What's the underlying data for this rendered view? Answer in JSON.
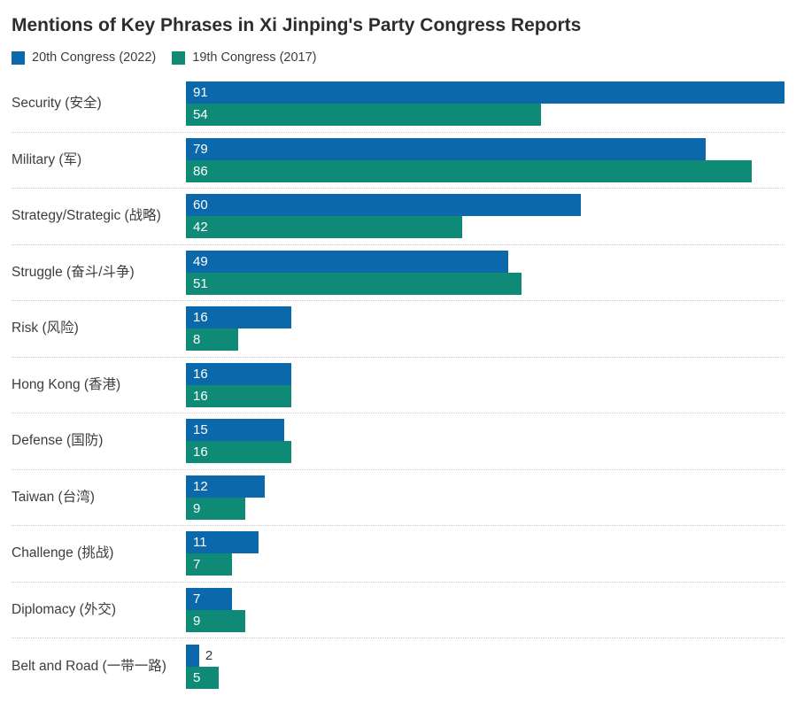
{
  "title": "Mentions of Key Phrases in Xi Jinping's Party Congress Reports",
  "legend": [
    {
      "label": "20th Congress (2022)",
      "color": "#0b69ab"
    },
    {
      "label": "19th Congress (2017)",
      "color": "#0f8a77"
    }
  ],
  "colors": {
    "series_2022": "#0b69ab",
    "series_2017": "#0f8a77",
    "title_text": "#2d2d2d",
    "label_text": "#3d3d3d",
    "divider": "#cccccc",
    "value_label_inside": "#ffffff",
    "value_label_outside": "#333333"
  },
  "chart_data": {
    "type": "bar",
    "orientation": "horizontal",
    "title": "Mentions of Key Phrases in Xi Jinping's Party Congress Reports",
    "xlabel": "",
    "ylabel": "",
    "xlim": [
      0,
      91
    ],
    "grid": false,
    "legend_position": "top-left",
    "value_labels": "shown on bars",
    "categories": [
      "Security (安全)",
      "Military (军)",
      "Strategy/Strategic (战略)",
      "Struggle (奋斗/斗争)",
      "Risk (风险)",
      "Hong Kong (香港)",
      "Defense (国防)",
      "Taiwan (台湾)",
      "Challenge (挑战)",
      "Diplomacy (外交)",
      "Belt and Road (一带一路)"
    ],
    "max": 91,
    "series": [
      {
        "name": "20th Congress (2022)",
        "color": "#0b69ab",
        "values": [
          91,
          79,
          60,
          49,
          16,
          16,
          15,
          12,
          11,
          7,
          2
        ]
      },
      {
        "name": "19th Congress (2017)",
        "color": "#0f8a77",
        "values": [
          54,
          86,
          42,
          51,
          8,
          16,
          16,
          9,
          7,
          9,
          5
        ]
      }
    ]
  }
}
